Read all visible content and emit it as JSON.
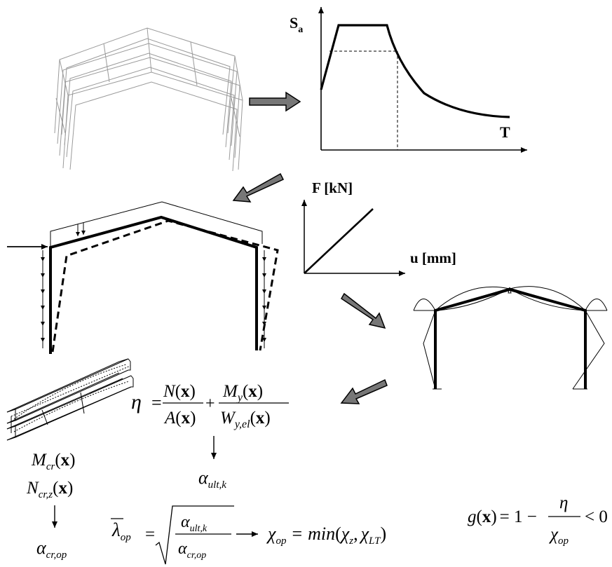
{
  "spectrum": {
    "y_axis": "S",
    "y_sub": "a",
    "x_axis": "T"
  },
  "force_displacement": {
    "y_axis": "F [kN]",
    "x_axis": "u [mm]"
  },
  "formulas": {
    "eta_lhs": "η",
    "eq": "=",
    "plus": "+",
    "N": "N",
    "A": "A",
    "M": "M",
    "y": "y",
    "W": "W",
    "y_el": "y,el",
    "x": "x",
    "lp": "(",
    "rp": ")",
    "alpha": "α",
    "ult_k": "ult,k",
    "Mcr": "M",
    "cr": "cr",
    "Ncr": "N",
    "cr_z": "cr,z",
    "cr_op": "cr,op",
    "lambda": "λ",
    "op": "op",
    "chi": "χ",
    "min": "min",
    "chi_z": "z",
    "chi_LT": "LT",
    "comma": ",",
    "g": "g",
    "one_minus": "= 1 −",
    "lt_zero": "< 0"
  }
}
